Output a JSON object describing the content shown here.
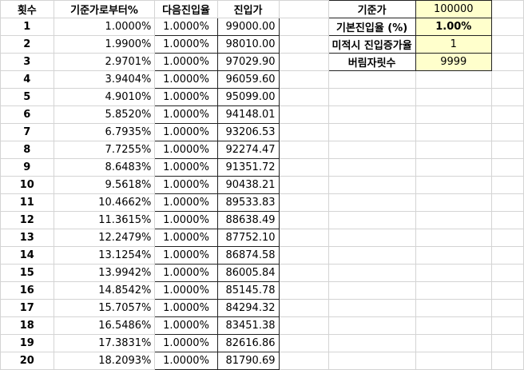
{
  "headers": {
    "count": "횟수",
    "from_base": "기준가로부터%",
    "next_rate": "다음진입율",
    "entry_price": "진입가"
  },
  "rows": [
    {
      "n": "1",
      "pct": "1.0000%",
      "rate": "1.0000%",
      "price": "99000.00"
    },
    {
      "n": "2",
      "pct": "1.9900%",
      "rate": "1.0000%",
      "price": "98010.00"
    },
    {
      "n": "3",
      "pct": "2.9701%",
      "rate": "1.0000%",
      "price": "97029.90"
    },
    {
      "n": "4",
      "pct": "3.9404%",
      "rate": "1.0000%",
      "price": "96059.60"
    },
    {
      "n": "5",
      "pct": "4.9010%",
      "rate": "1.0000%",
      "price": "95099.00"
    },
    {
      "n": "6",
      "pct": "5.8520%",
      "rate": "1.0000%",
      "price": "94148.01"
    },
    {
      "n": "7",
      "pct": "6.7935%",
      "rate": "1.0000%",
      "price": "93206.53"
    },
    {
      "n": "8",
      "pct": "7.7255%",
      "rate": "1.0000%",
      "price": "92274.47"
    },
    {
      "n": "9",
      "pct": "8.6483%",
      "rate": "1.0000%",
      "price": "91351.72"
    },
    {
      "n": "10",
      "pct": "9.5618%",
      "rate": "1.0000%",
      "price": "90438.21"
    },
    {
      "n": "11",
      "pct": "10.4662%",
      "rate": "1.0000%",
      "price": "89533.83"
    },
    {
      "n": "12",
      "pct": "11.3615%",
      "rate": "1.0000%",
      "price": "88638.49"
    },
    {
      "n": "13",
      "pct": "12.2479%",
      "rate": "1.0000%",
      "price": "87752.10"
    },
    {
      "n": "14",
      "pct": "13.1254%",
      "rate": "1.0000%",
      "price": "86874.58"
    },
    {
      "n": "15",
      "pct": "13.9942%",
      "rate": "1.0000%",
      "price": "86005.84"
    },
    {
      "n": "16",
      "pct": "14.8542%",
      "rate": "1.0000%",
      "price": "85145.78"
    },
    {
      "n": "17",
      "pct": "15.7057%",
      "rate": "1.0000%",
      "price": "84294.32"
    },
    {
      "n": "18",
      "pct": "16.5486%",
      "rate": "1.0000%",
      "price": "83451.38"
    },
    {
      "n": "19",
      "pct": "17.3831%",
      "rate": "1.0000%",
      "price": "82616.86"
    },
    {
      "n": "20",
      "pct": "18.2093%",
      "rate": "1.0000%",
      "price": "81790.69"
    }
  ],
  "info": [
    {
      "label": "기준가",
      "value": "100000",
      "bold": false
    },
    {
      "label": "기본진입율 (%)",
      "value": "1.00%",
      "bold": true
    },
    {
      "label": "미적시 진입증가율",
      "value": "1",
      "bold": false
    },
    {
      "label": "버림자릿수",
      "value": "9999",
      "bold": false
    }
  ],
  "colors": {
    "accent_orange": "#ed7d31",
    "input_yellow": "#ffffcc",
    "gridline": "#d4d4d4"
  }
}
